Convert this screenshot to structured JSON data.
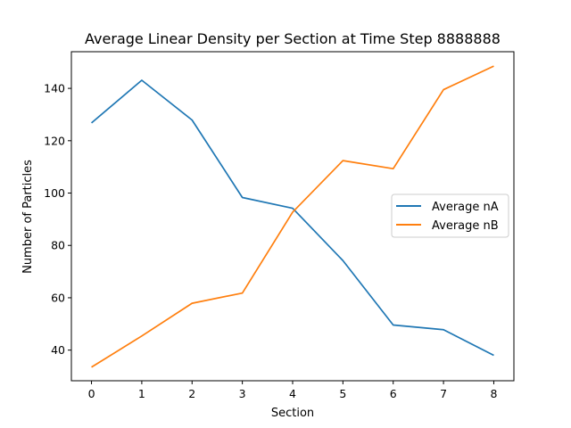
{
  "chart_data": {
    "type": "line",
    "title": "Average Linear Density per Section at Time Step 8888888",
    "xlabel": "Section",
    "ylabel": "Number of Particles",
    "x": [
      0,
      1,
      2,
      3,
      4,
      5,
      6,
      7,
      8
    ],
    "xlim": [
      -0.4,
      8.4
    ],
    "ylim": [
      28.3,
      154
    ],
    "xticks": [
      "0",
      "1",
      "2",
      "3",
      "4",
      "5",
      "6",
      "7",
      "8"
    ],
    "yticks": [
      "40",
      "60",
      "80",
      "100",
      "120",
      "140"
    ],
    "ytick_values": [
      40,
      60,
      80,
      100,
      120,
      140
    ],
    "grid": false,
    "legend_position": "center-right",
    "series": [
      {
        "name": "Average nA",
        "color": "#1f77b4",
        "values": [
          126.8,
          143.1,
          127.9,
          98.3,
          94.2,
          74.2,
          49.6,
          47.8,
          38.0
        ]
      },
      {
        "name": "Average nB",
        "color": "#ff7f0e",
        "values": [
          33.5,
          45.4,
          57.9,
          61.8,
          92.7,
          112.4,
          109.3,
          139.5,
          148.5
        ]
      }
    ]
  }
}
